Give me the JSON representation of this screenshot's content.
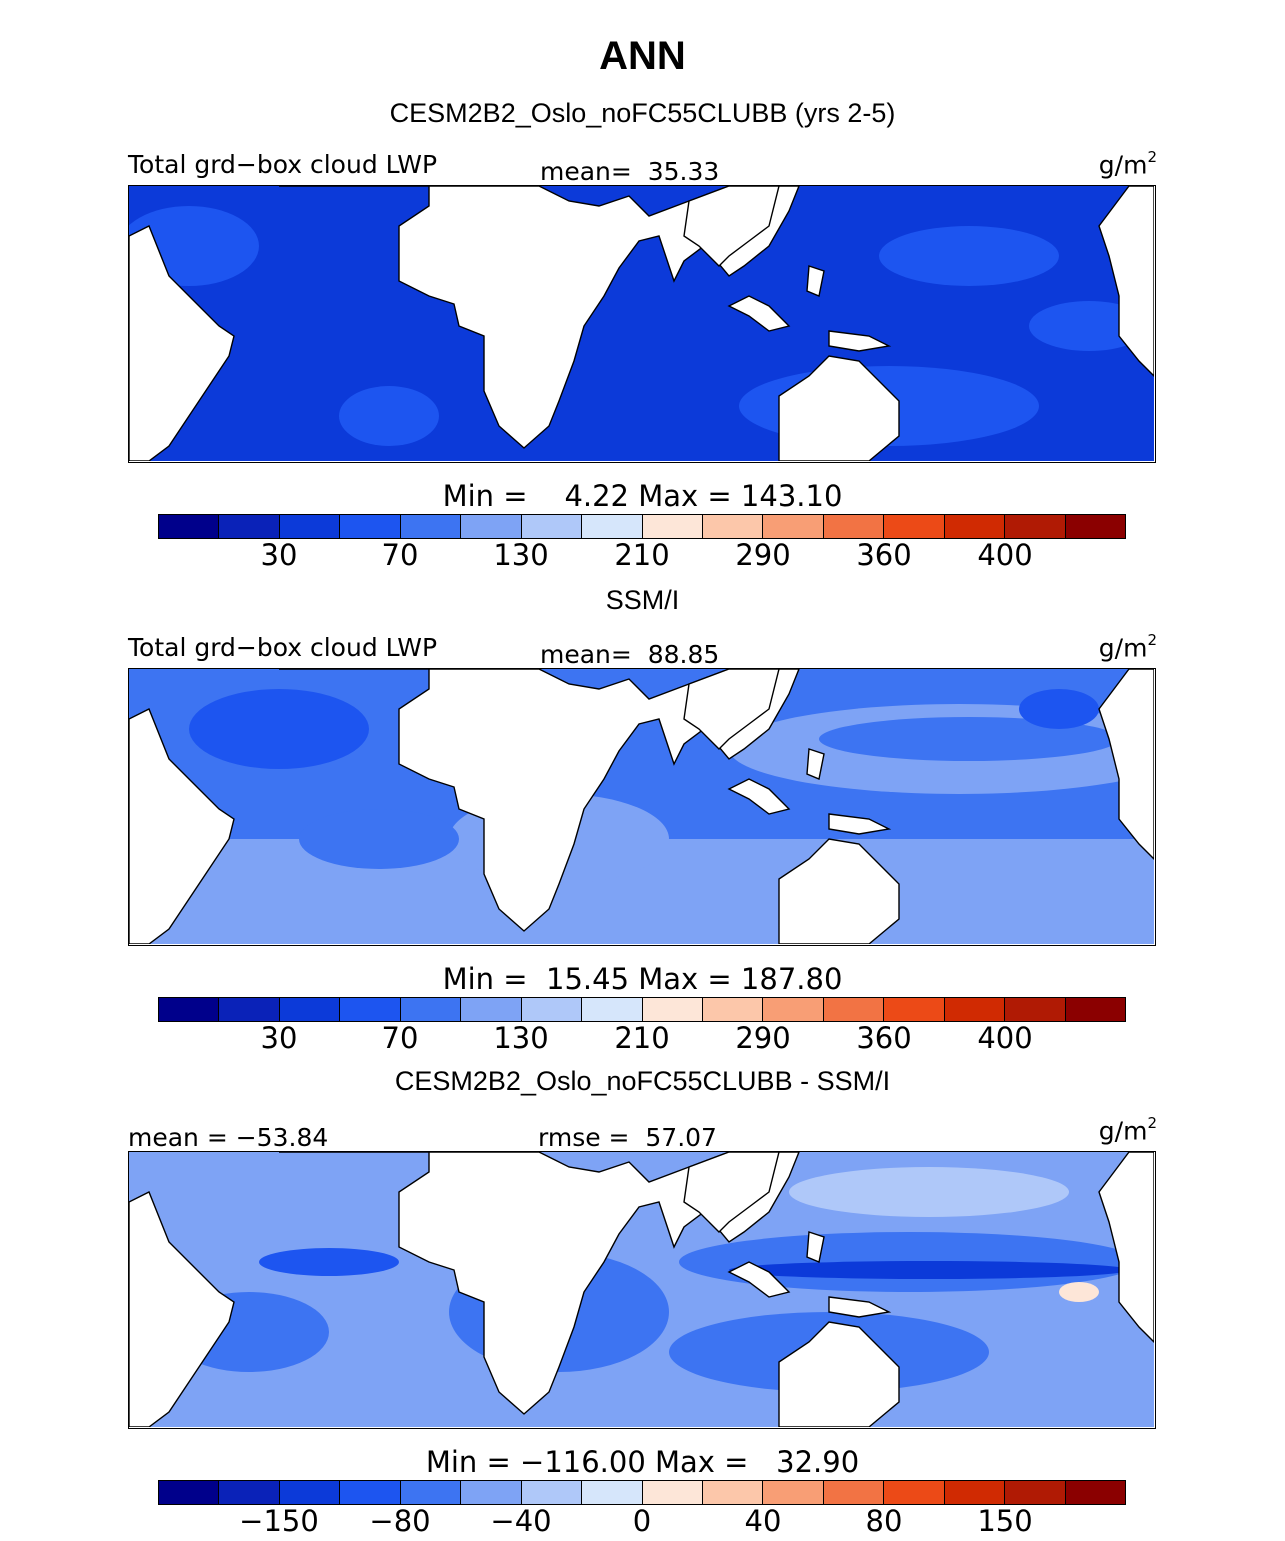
{
  "title": "ANN",
  "colorbar_colors": [
    "#00008b",
    "#0a22b8",
    "#0c3ad9",
    "#1d55f0",
    "#3d74f2",
    "#7ea3f5",
    "#afc8f9",
    "#d6e6fb",
    "#fde6d8",
    "#fcc7aa",
    "#f89e75",
    "#f27344",
    "#ec4a17",
    "#d02a02",
    "#b01a04",
    "#8b0000"
  ],
  "colors": {
    "land": "#ffffff",
    "blue_dark": "#0c3ad9",
    "blue_mid": "#1d55f0",
    "blue_light": "#3d74f2",
    "blue_pale": "#7ea3f5",
    "blue_paler": "#afc8f9",
    "blue_palest": "#d6e6fb",
    "peach": "#fde6d8"
  },
  "panels": [
    {
      "title": "CESM2B2_Oslo_noFC55CLUBB (yrs 2-5)",
      "left_label": "Total grd−box cloud LWP",
      "center_label": "mean=  35.33",
      "units": "g/m",
      "units_sup": "2",
      "min_max": "Min =    4.22 Max = 143.10",
      "ticks": [
        "30",
        "70",
        "130",
        "210",
        "290",
        "360",
        "400"
      ]
    },
    {
      "title": "SSM/I",
      "left_label": "Total grd−box cloud LWP",
      "center_label": "mean=  88.85",
      "units": "g/m",
      "units_sup": "2",
      "min_max": "Min =  15.45 Max = 187.80",
      "ticks": [
        "30",
        "70",
        "130",
        "210",
        "290",
        "360",
        "400"
      ]
    },
    {
      "title": "CESM2B2_Oslo_noFC55CLUBB - SSM/I",
      "left_label": "mean = −53.84",
      "center_label": "rmse =  57.07",
      "units": "g/m",
      "units_sup": "2",
      "min_max": "Min = −116.00 Max =   32.90",
      "ticks": [
        "−150",
        "−80",
        "−40",
        "0",
        "40",
        "80",
        "150"
      ]
    }
  ]
}
